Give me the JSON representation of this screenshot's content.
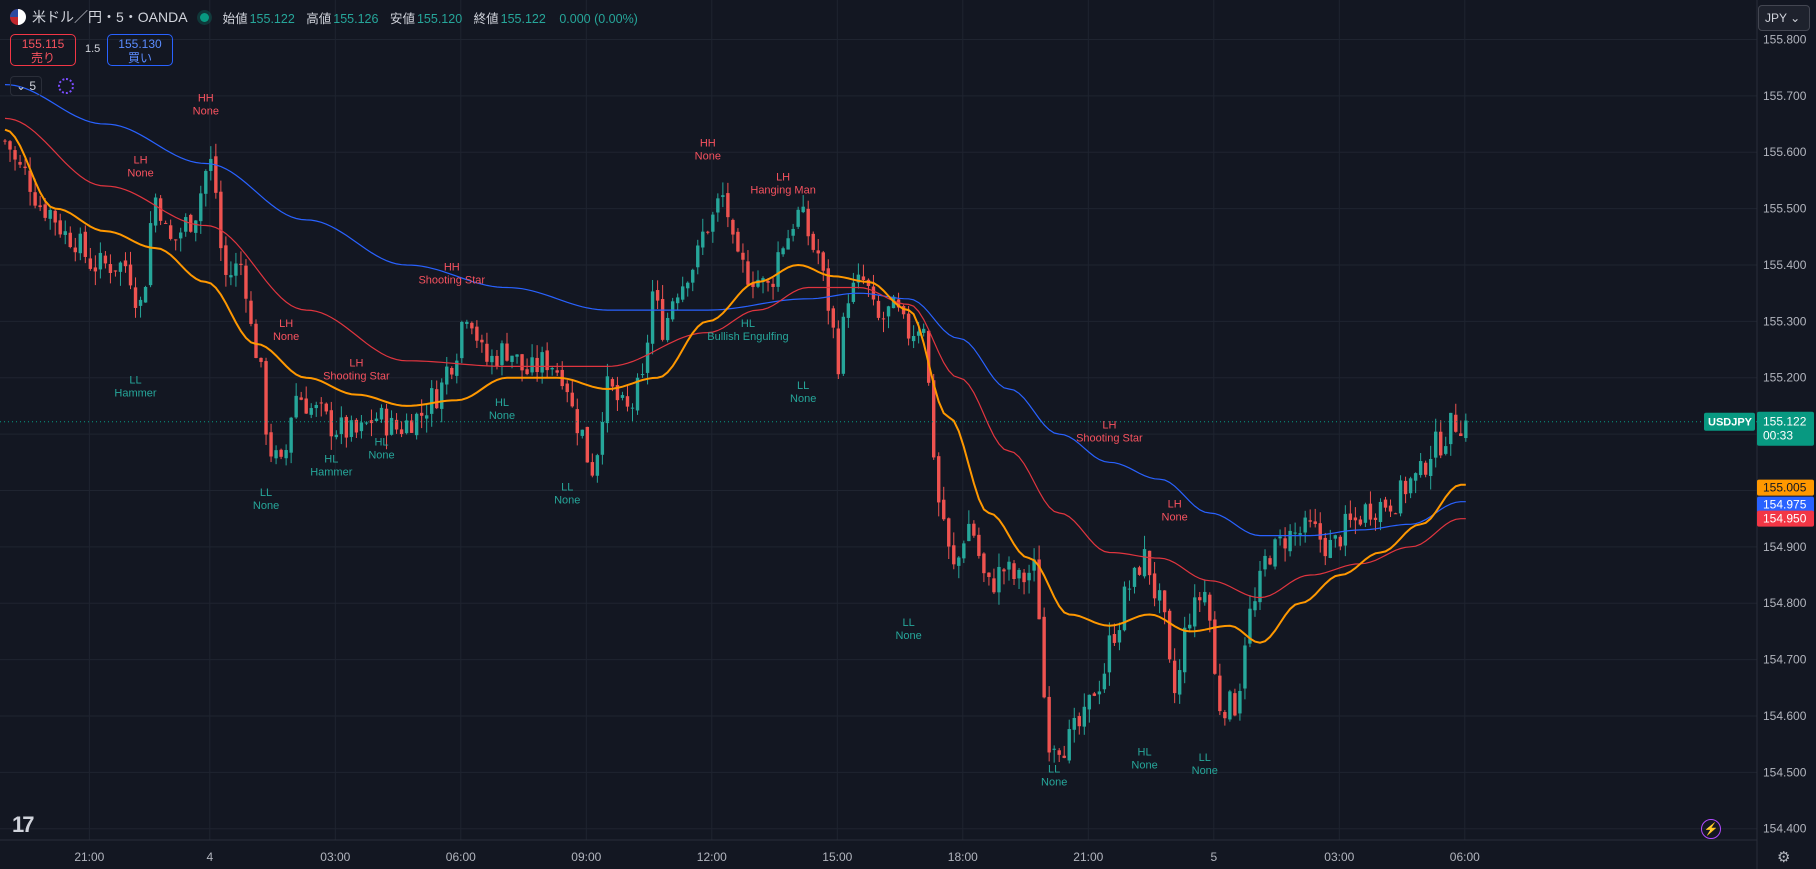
{
  "header": {
    "symbol_title": "米ドル／円・5・OANDA",
    "o_label": "始値",
    "o_value": "155.122",
    "h_label": "高値",
    "h_value": "155.126",
    "l_label": "安値",
    "l_value": "155.120",
    "c_label": "終値",
    "c_value": "155.122",
    "change": "0.000 (0.00%)"
  },
  "trade": {
    "sell_price": "155.115",
    "sell_label": "売り",
    "spread": "1.5",
    "buy_price": "155.130",
    "buy_label": "買い"
  },
  "interval_label": "5",
  "currency_button": "JPY",
  "colors": {
    "up": "#26a69a",
    "down": "#ef5350",
    "ma_fast": "#ff9800",
    "ma_mid": "#e0353f",
    "ma_slow": "#2962ff",
    "bg": "#131722",
    "grid": "#1f2430"
  },
  "chart_data": {
    "type": "candlestick",
    "symbol": "USDJPY",
    "timeframe": "5",
    "ylim": [
      154.38,
      155.87
    ],
    "y_ticks": [
      "155.800",
      "155.700",
      "155.600",
      "155.500",
      "155.400",
      "155.300",
      "155.200",
      "155.100",
      "155.000",
      "154.900",
      "154.800",
      "154.700",
      "154.600",
      "154.500",
      "154.400"
    ],
    "x_ticks": [
      "21:00",
      "4",
      "03:00",
      "06:00",
      "09:00",
      "12:00",
      "15:00",
      "18:00",
      "21:00",
      "5",
      "03:00",
      "06:00"
    ],
    "price_anchors": [
      [
        0,
        155.62
      ],
      [
        3,
        155.57
      ],
      [
        8,
        155.5
      ],
      [
        13,
        155.45
      ],
      [
        18,
        155.4
      ],
      [
        24,
        155.4
      ],
      [
        27,
        155.33
      ],
      [
        30,
        155.52
      ],
      [
        33,
        155.44
      ],
      [
        37,
        155.48
      ],
      [
        41,
        155.58
      ],
      [
        44,
        155.38
      ],
      [
        47,
        155.4
      ],
      [
        50,
        155.25
      ],
      [
        53,
        155.07
      ],
      [
        55,
        155.04
      ],
      [
        58,
        155.17
      ],
      [
        62,
        155.14
      ],
      [
        66,
        155.11
      ],
      [
        70,
        155.1
      ],
      [
        74,
        155.13
      ],
      [
        78,
        155.11
      ],
      [
        82,
        155.13
      ],
      [
        86,
        155.17
      ],
      [
        89,
        155.23
      ],
      [
        92,
        155.32
      ],
      [
        96,
        155.23
      ],
      [
        100,
        155.25
      ],
      [
        104,
        155.21
      ],
      [
        108,
        155.23
      ],
      [
        111,
        155.21
      ],
      [
        114,
        155.12
      ],
      [
        117,
        155.04
      ],
      [
        120,
        155.18
      ],
      [
        124,
        155.14
      ],
      [
        127,
        155.19
      ],
      [
        129,
        155.35
      ],
      [
        131,
        155.29
      ],
      [
        134,
        155.36
      ],
      [
        137,
        155.4
      ],
      [
        140,
        155.47
      ],
      [
        143,
        155.52
      ],
      [
        146,
        155.4
      ],
      [
        149,
        155.38
      ],
      [
        152,
        155.36
      ],
      [
        155,
        155.44
      ],
      [
        158,
        155.49
      ],
      [
        162,
        155.42
      ],
      [
        164,
        155.33
      ],
      [
        166,
        155.23
      ],
      [
        168,
        155.35
      ],
      [
        171,
        155.37
      ],
      [
        174,
        155.3
      ],
      [
        177,
        155.32
      ],
      [
        180,
        155.28
      ],
      [
        183,
        155.3
      ],
      [
        185,
        155.07
      ],
      [
        186,
        154.98
      ],
      [
        189,
        154.86
      ],
      [
        192,
        154.94
      ],
      [
        196,
        154.83
      ],
      [
        199,
        154.86
      ],
      [
        202,
        154.84
      ],
      [
        205,
        154.86
      ],
      [
        208,
        154.56
      ],
      [
        211,
        154.55
      ],
      [
        214,
        154.58
      ],
      [
        218,
        154.66
      ],
      [
        221,
        154.75
      ],
      [
        224,
        154.83
      ],
      [
        227,
        154.88
      ],
      [
        230,
        154.8
      ],
      [
        233,
        154.64
      ],
      [
        236,
        154.78
      ],
      [
        239,
        154.82
      ],
      [
        242,
        154.62
      ],
      [
        245,
        154.62
      ],
      [
        248,
        154.78
      ],
      [
        252,
        154.89
      ],
      [
        256,
        154.92
      ],
      [
        260,
        154.93
      ],
      [
        264,
        154.9
      ],
      [
        268,
        154.94
      ],
      [
        272,
        154.97
      ],
      [
        276,
        154.98
      ],
      [
        281,
        155.02
      ],
      [
        285,
        155.08
      ],
      [
        289,
        155.12
      ]
    ],
    "ma_fast_anchors": [
      [
        0,
        155.64
      ],
      [
        10,
        155.5
      ],
      [
        20,
        155.46
      ],
      [
        30,
        155.43
      ],
      [
        40,
        155.37
      ],
      [
        50,
        155.26
      ],
      [
        60,
        155.2
      ],
      [
        70,
        155.17
      ],
      [
        80,
        155.15
      ],
      [
        90,
        155.16
      ],
      [
        100,
        155.2
      ],
      [
        110,
        155.2
      ],
      [
        120,
        155.18
      ],
      [
        130,
        155.2
      ],
      [
        140,
        155.3
      ],
      [
        150,
        155.37
      ],
      [
        158,
        155.4
      ],
      [
        165,
        155.38
      ],
      [
        172,
        155.37
      ],
      [
        180,
        155.32
      ],
      [
        188,
        155.13
      ],
      [
        196,
        154.96
      ],
      [
        204,
        154.88
      ],
      [
        212,
        154.78
      ],
      [
        220,
        154.76
      ],
      [
        228,
        154.78
      ],
      [
        236,
        154.75
      ],
      [
        244,
        154.76
      ],
      [
        250,
        154.73
      ],
      [
        258,
        154.8
      ],
      [
        266,
        154.85
      ],
      [
        274,
        154.89
      ],
      [
        282,
        154.94
      ],
      [
        290,
        155.01
      ]
    ],
    "ma_mid_anchors": [
      [
        0,
        155.66
      ],
      [
        20,
        155.54
      ],
      [
        40,
        155.47
      ],
      [
        60,
        155.32
      ],
      [
        80,
        155.23
      ],
      [
        100,
        155.22
      ],
      [
        120,
        155.22
      ],
      [
        140,
        155.28
      ],
      [
        150,
        155.32
      ],
      [
        160,
        155.36
      ],
      [
        170,
        155.36
      ],
      [
        180,
        155.33
      ],
      [
        190,
        155.2
      ],
      [
        200,
        155.07
      ],
      [
        210,
        154.96
      ],
      [
        220,
        154.89
      ],
      [
        230,
        154.88
      ],
      [
        240,
        154.84
      ],
      [
        250,
        154.81
      ],
      [
        260,
        154.85
      ],
      [
        270,
        154.87
      ],
      [
        280,
        154.9
      ],
      [
        290,
        154.95
      ]
    ],
    "ma_slow_anchors": [
      [
        0,
        155.72
      ],
      [
        20,
        155.65
      ],
      [
        40,
        155.58
      ],
      [
        60,
        155.48
      ],
      [
        80,
        155.4
      ],
      [
        100,
        155.36
      ],
      [
        120,
        155.32
      ],
      [
        140,
        155.32
      ],
      [
        160,
        155.34
      ],
      [
        170,
        155.35
      ],
      [
        180,
        155.34
      ],
      [
        190,
        155.27
      ],
      [
        200,
        155.18
      ],
      [
        210,
        155.1
      ],
      [
        220,
        155.05
      ],
      [
        230,
        155.02
      ],
      [
        240,
        154.96
      ],
      [
        250,
        154.92
      ],
      [
        260,
        154.92
      ],
      [
        270,
        154.93
      ],
      [
        280,
        154.94
      ],
      [
        290,
        154.98
      ]
    ],
    "bars": 292,
    "markers": [
      {
        "i": 27,
        "y": 155.58,
        "kind": "high",
        "label": "LH",
        "sub": "None"
      },
      {
        "i": 40,
        "y": 155.69,
        "kind": "high",
        "label": "HH",
        "sub": "None"
      },
      {
        "i": 56,
        "y": 155.29,
        "kind": "high",
        "label": "LH",
        "sub": "None"
      },
      {
        "i": 70,
        "y": 155.22,
        "kind": "high",
        "label": "LH",
        "sub": "Shooting Star"
      },
      {
        "i": 89,
        "y": 155.39,
        "kind": "high",
        "label": "HH",
        "sub": "Shooting Star"
      },
      {
        "i": 140,
        "y": 155.61,
        "kind": "high",
        "label": "HH",
        "sub": "None"
      },
      {
        "i": 155,
        "y": 155.55,
        "kind": "high",
        "label": "LH",
        "sub": "Hanging Man"
      },
      {
        "i": 220,
        "y": 155.11,
        "kind": "high",
        "label": "LH",
        "sub": "Shooting Star"
      },
      {
        "i": 233,
        "y": 154.97,
        "kind": "high",
        "label": "LH",
        "sub": "None"
      },
      {
        "i": 26,
        "y": 155.19,
        "kind": "low",
        "label": "LL",
        "sub": "Hammer"
      },
      {
        "i": 52,
        "y": 154.99,
        "kind": "low",
        "label": "LL",
        "sub": "None"
      },
      {
        "i": 65,
        "y": 155.05,
        "kind": "low",
        "label": "HL",
        "sub": "Hammer"
      },
      {
        "i": 75,
        "y": 155.08,
        "kind": "low",
        "label": "HL",
        "sub": "None"
      },
      {
        "i": 99,
        "y": 155.15,
        "kind": "low",
        "label": "HL",
        "sub": "None"
      },
      {
        "i": 112,
        "y": 155.0,
        "kind": "low",
        "label": "LL",
        "sub": "None"
      },
      {
        "i": 148,
        "y": 155.29,
        "kind": "low",
        "label": "HL",
        "sub": "Bullish Engulfing"
      },
      {
        "i": 159,
        "y": 155.18,
        "kind": "low",
        "label": "LL",
        "sub": "None"
      },
      {
        "i": 180,
        "y": 154.76,
        "kind": "low",
        "label": "LL",
        "sub": "None"
      },
      {
        "i": 209,
        "y": 154.5,
        "kind": "low",
        "label": "LL",
        "sub": "None"
      },
      {
        "i": 227,
        "y": 154.53,
        "kind": "low",
        "label": "HL",
        "sub": "None"
      },
      {
        "i": 239,
        "y": 154.52,
        "kind": "low",
        "label": "LL",
        "sub": "None"
      }
    ],
    "price_tags": [
      {
        "text": "155.122",
        "sub": "00:33",
        "name": "USDJPY",
        "value": 155.122,
        "color": "#089981"
      },
      {
        "text": "155.005",
        "value": 155.005,
        "color": "#ff9800"
      },
      {
        "text": "154.975",
        "value": 154.975,
        "color": "#2962ff"
      },
      {
        "text": "154.950",
        "value": 154.95,
        "color": "#f23645"
      }
    ]
  }
}
